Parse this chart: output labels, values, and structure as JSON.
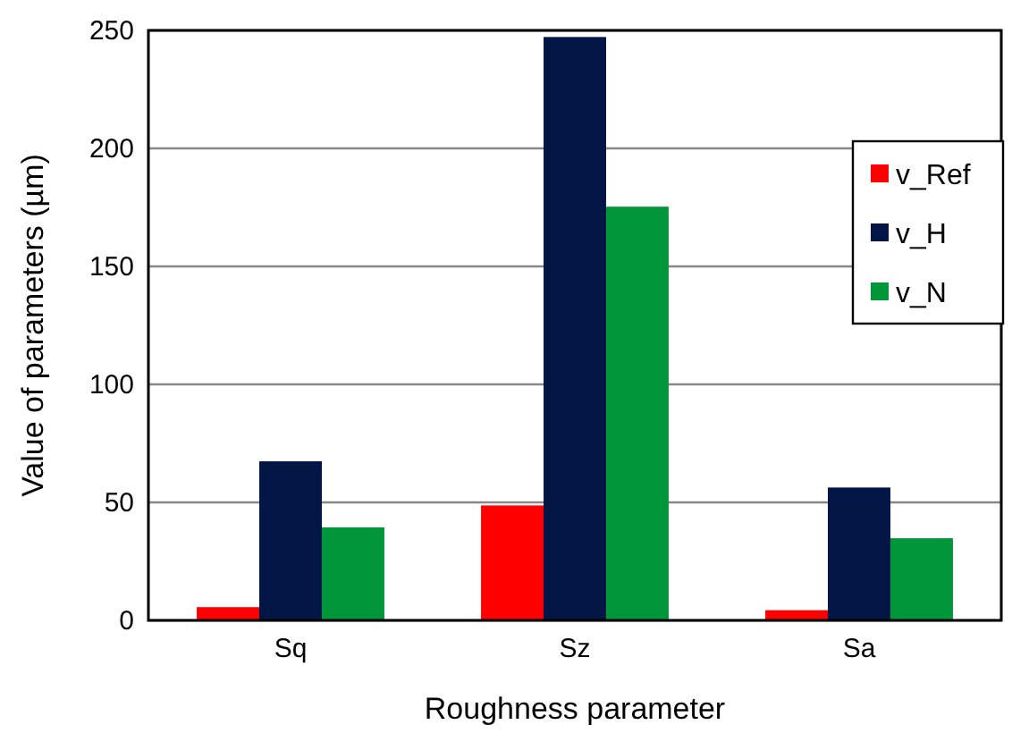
{
  "chart_data": {
    "type": "bar",
    "xlabel": "Roughness parameter",
    "ylabel": "Value of parameters (µm)",
    "categories": [
      "Sq",
      "Sz",
      "Sa"
    ],
    "series": [
      {
        "name": "v_Ref",
        "color": "#ff0000",
        "values": [
          5.6,
          48.7,
          4.3
        ]
      },
      {
        "name": "v_H",
        "color": "#021646",
        "values": [
          67.4,
          247.2,
          56.3
        ]
      },
      {
        "name": "v_N",
        "color": "#009639",
        "values": [
          39.4,
          175.3,
          34.8
        ]
      }
    ],
    "ylim": [
      0,
      250
    ],
    "yticks": [
      0,
      50,
      100,
      150,
      200,
      250
    ],
    "grid": "y",
    "legend": "top right"
  }
}
